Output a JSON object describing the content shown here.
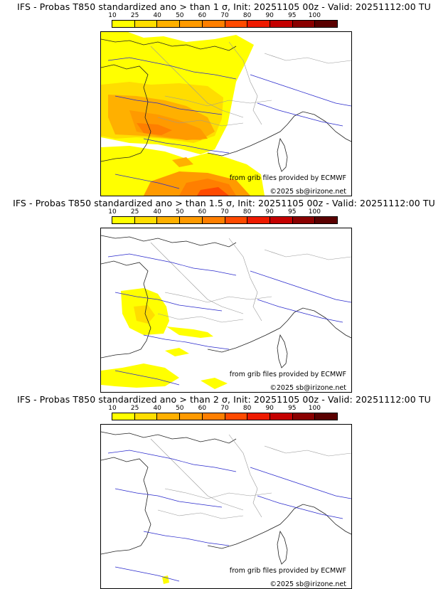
{
  "colorbar": {
    "ticks": [
      "10",
      "25",
      "40",
      "50",
      "60",
      "70",
      "80",
      "90",
      "95",
      "100"
    ],
    "colors": [
      "#ffff00",
      "#ffdd00",
      "#ffb000",
      "#ff9a00",
      "#ff7f00",
      "#ff4a00",
      "#ee1a00",
      "#c40000",
      "#8a0000",
      "#5a0000"
    ]
  },
  "panels": [
    {
      "title": "IFS - Probas T850  standardized ano > than 1 σ, Init: 20251105 00z - Valid: 20251112:00 TU",
      "credit_source": "from grib files provided by ECMWF",
      "credit_copyright": "©2025 sb@irizone.net"
    },
    {
      "title": "IFS - Probas T850  standardized ano > than 1.5 σ, Init: 20251105 00z - Valid: 20251112:00 TU",
      "credit_source": "from grib files provided by ECMWF",
      "credit_copyright": "©2025 sb@irizone.net"
    },
    {
      "title": "IFS - Probas T850  standardized ano > than 2 σ, Init: 20251105 00z - Valid: 20251112:00 TU",
      "credit_source": "from grib files provided by ECMWF",
      "credit_copyright": "©2025 sb@irizone.net"
    }
  ]
}
